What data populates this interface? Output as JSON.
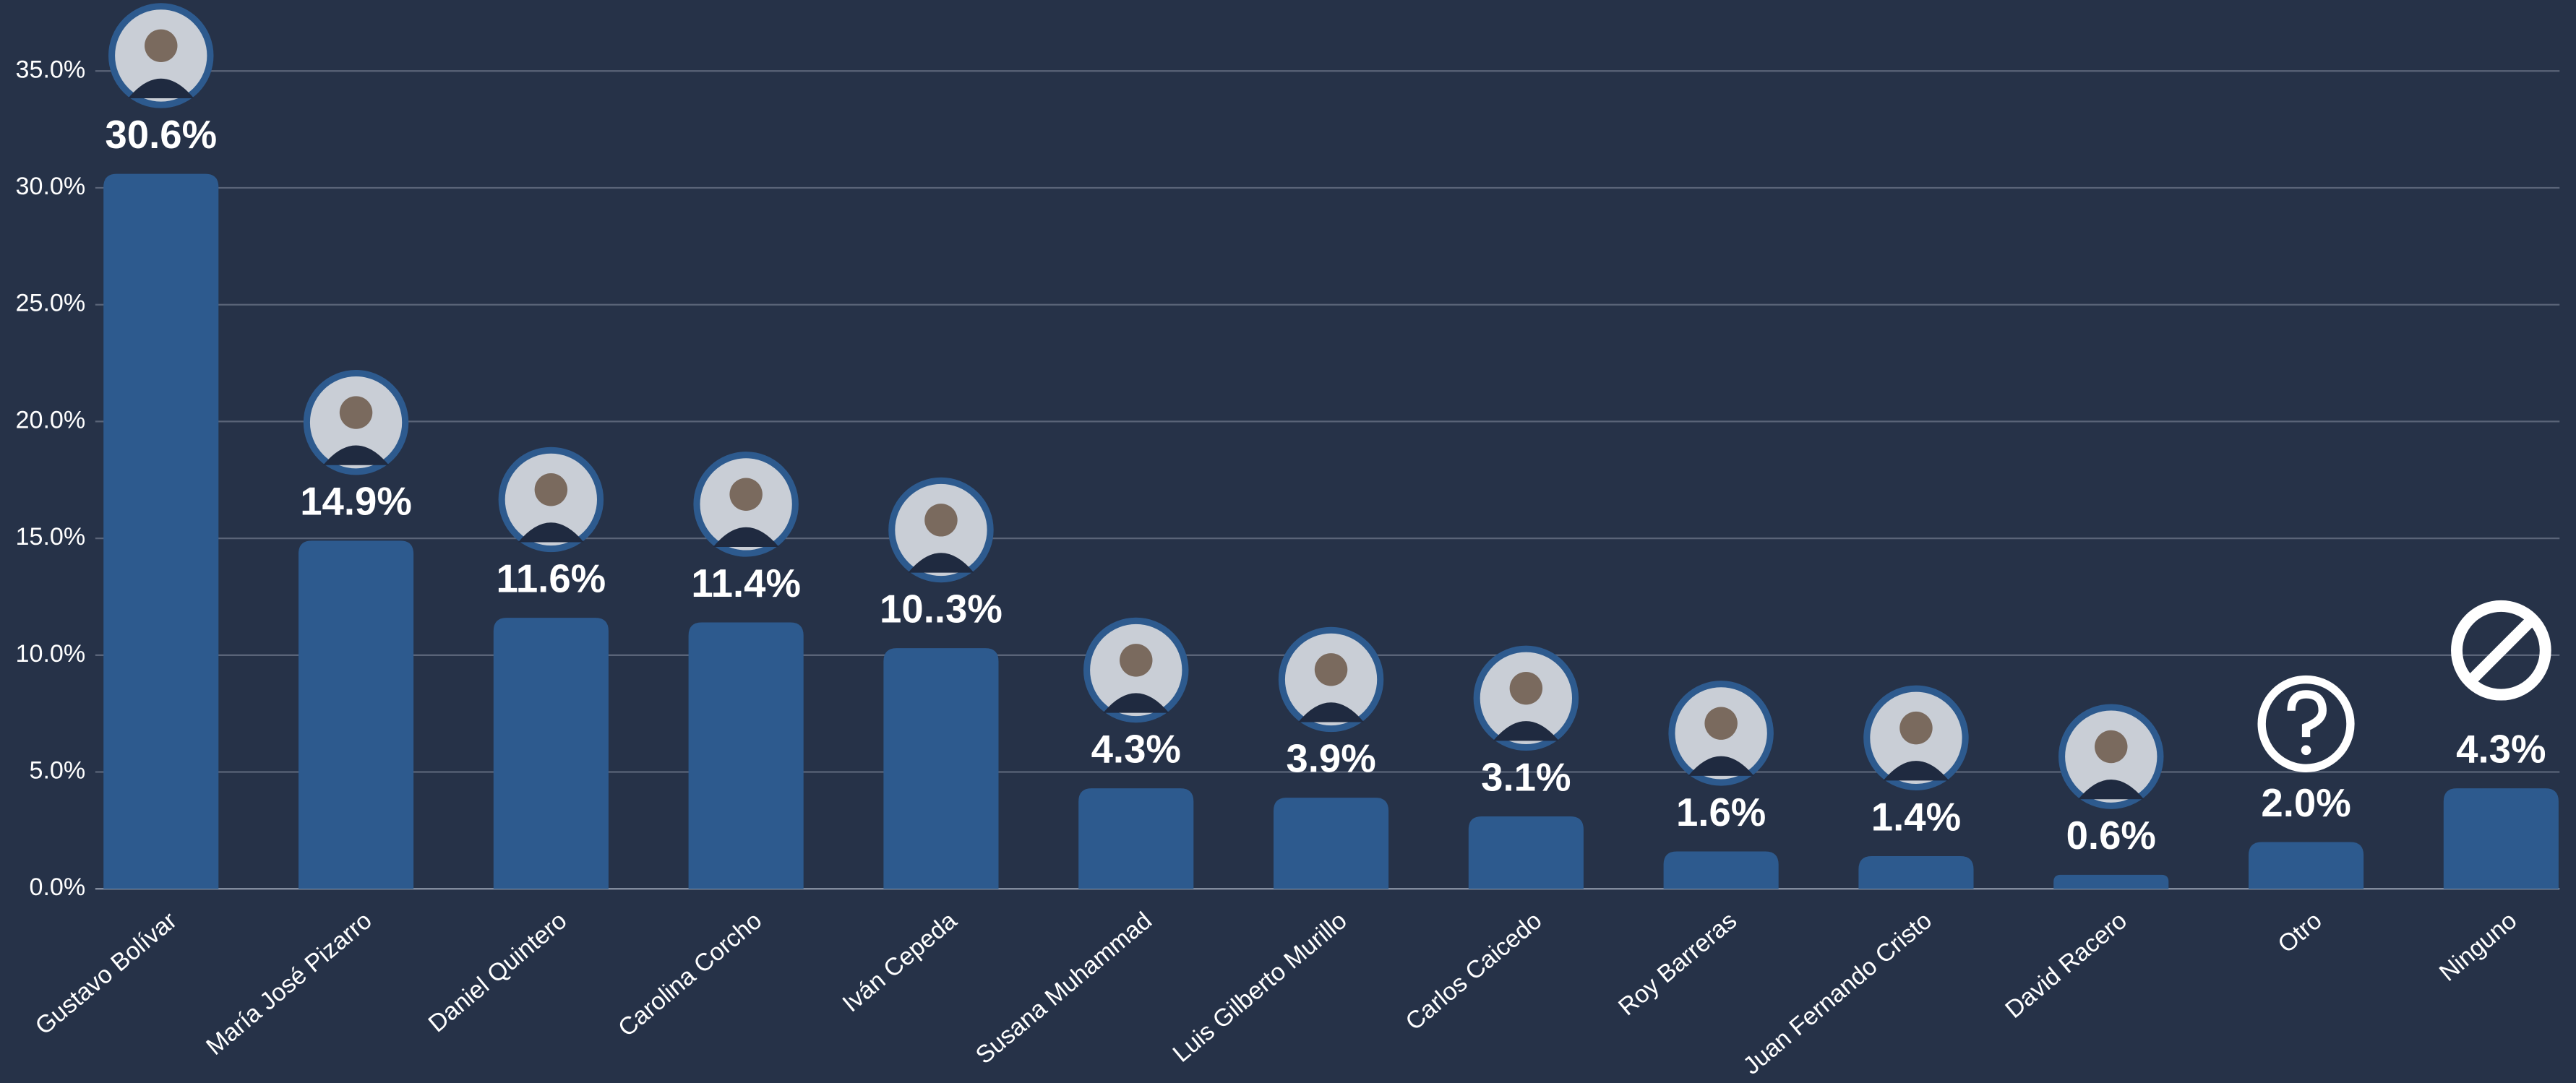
{
  "chart_data": {
    "type": "bar",
    "categories": [
      "Gustavo Bolívar",
      "María José Pizarro",
      "Daniel Quintero",
      "Carolina Corcho",
      "Iván Cepeda",
      "Susana Muhammad",
      "Luis Gilberto Murillo",
      "Carlos Caicedo",
      "Roy Barreras",
      "Juan Fernando Cristo",
      "David Racero",
      "Otro",
      "Ninguno"
    ],
    "values": [
      30.6,
      14.9,
      11.6,
      11.4,
      10.3,
      4.3,
      3.9,
      3.1,
      1.6,
      1.4,
      0.6,
      2.0,
      4.3
    ],
    "value_labels": [
      "30.6%",
      "14.9%",
      "11.6%",
      "11.4%",
      "10..3%",
      "4.3%",
      "3.9%",
      "3.1%",
      "1.6%",
      "1.4%",
      "0.6%",
      "2.0%",
      "4.3%"
    ],
    "color": "#2d5a8e",
    "ylim": [
      0,
      35
    ],
    "yticks": [
      {
        "value": 0,
        "label": "0.0%"
      },
      {
        "value": 5,
        "label": "5.0%"
      },
      {
        "value": 10,
        "label": "10.0%"
      },
      {
        "value": 15,
        "label": "15.0%"
      },
      {
        "value": 20,
        "label": "20.0%"
      },
      {
        "value": 25,
        "label": "25.0%"
      },
      {
        "value": 30,
        "label": "30.0%"
      },
      {
        "value": 35,
        "label": "35.0%"
      }
    ],
    "grid": true
  }
}
